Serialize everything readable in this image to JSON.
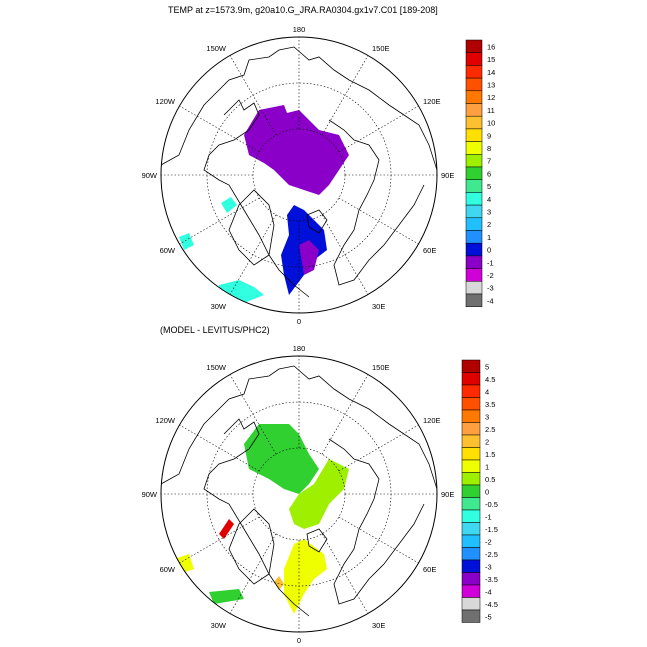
{
  "panels": [
    {
      "title": "TEMP at z=1573.9m, g20a10.G_JRA.RA0304.gx1v7.C01 [189-208]",
      "lon_labels": {
        "top": "180",
        "bottom": "0",
        "left": "90W",
        "right": "90E",
        "upper_left": "150W",
        "upper_right": "150E",
        "mid_left_upper": "120W",
        "mid_right_upper": "120E",
        "mid_left_lower": "60W",
        "mid_right_lower": "60E",
        "lower_left": "30W",
        "lower_right": "30E"
      },
      "colorbar": {
        "labels": [
          "16",
          "15",
          "14",
          "13",
          "12",
          "11",
          "10",
          "9",
          "8",
          "7",
          "6",
          "5",
          "4",
          "3",
          "2",
          "1",
          "0",
          "-1",
          "-2",
          "-3",
          "-4"
        ],
        "colors": [
          "#b00000",
          "#e00000",
          "#ff2a00",
          "#ff5000",
          "#ff7800",
          "#ffa040",
          "#ffc030",
          "#ffe000",
          "#f0ff00",
          "#9ef000",
          "#30d030",
          "#40e890",
          "#30ffe0",
          "#40d8f0",
          "#20c0ff",
          "#2090ff",
          "#0010d8",
          "#8a00c8",
          "#d000d8",
          "#d8d8d8",
          "#707070"
        ]
      }
    },
    {
      "title": "(MODEL - LEVITUS/PHC2)",
      "lon_labels": {
        "top": "180",
        "bottom": "0",
        "left": "90W",
        "right": "90E",
        "upper_left": "150W",
        "upper_right": "150E",
        "mid_left_upper": "120W",
        "mid_right_upper": "120E",
        "mid_left_lower": "60W",
        "mid_right_lower": "60E",
        "lower_left": "30W",
        "lower_right": "30E"
      },
      "colorbar": {
        "labels": [
          "5",
          "4.5",
          "4",
          "3.5",
          "3",
          "2.5",
          "2",
          "1.5",
          "1",
          "0.5",
          "0",
          "-0.5",
          "-1",
          "-1.5",
          "-2",
          "-2.5",
          "-3",
          "-3.5",
          "-4",
          "-4.5",
          "-5"
        ],
        "colors": [
          "#b00000",
          "#e00000",
          "#ff2a00",
          "#ff5000",
          "#ff7800",
          "#ffa040",
          "#ffc030",
          "#ffe000",
          "#f0ff00",
          "#9ef000",
          "#30d030",
          "#40e890",
          "#30ffe0",
          "#40d8f0",
          "#20c0ff",
          "#2090ff",
          "#0010d8",
          "#8a00c8",
          "#d000d8",
          "#d8d8d8",
          "#707070"
        ]
      }
    }
  ],
  "fields": {
    "top": {
      "purple": "#8a00c8",
      "blue": "#0010d8",
      "cyan": "#30ffe0"
    },
    "bottom": {
      "green": "#30d030",
      "lime": "#9ef000",
      "yellow": "#f0ff00",
      "red": "#e00000",
      "orange": "#ffc030"
    }
  }
}
